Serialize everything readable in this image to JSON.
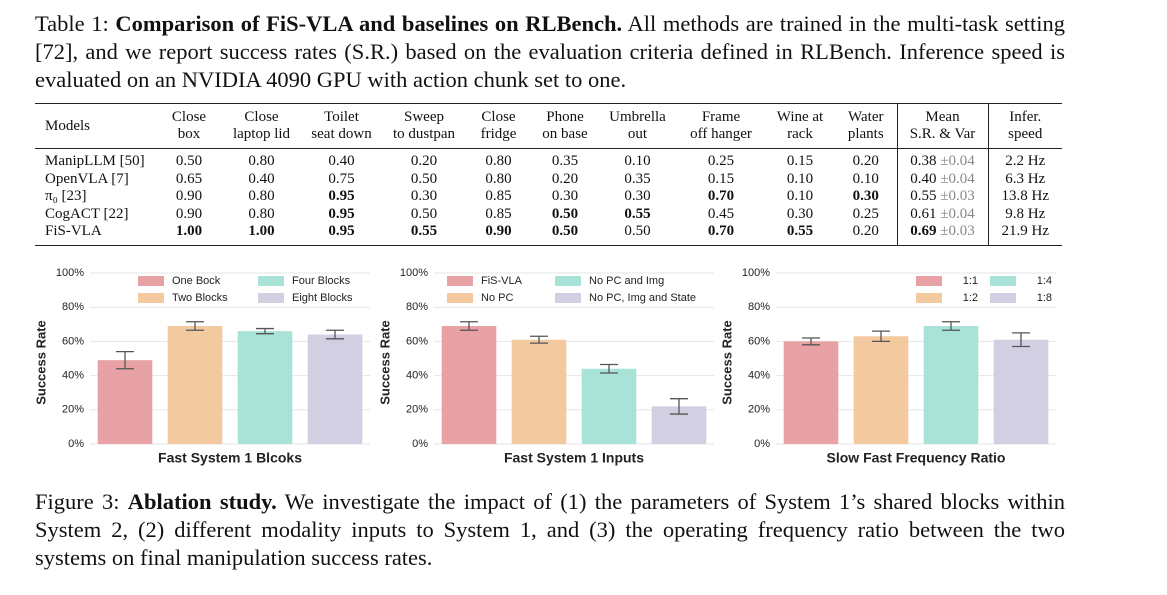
{
  "table_caption": {
    "label": "Table 1:",
    "title": "Comparison of FiS-VLA and baselines on RLBench.",
    "text": "All methods are trained in the multi-task setting [72], and we report success rates (S.R.) based on the evaluation criteria defined in RLBench. Inference speed is evaluated on an NVIDIA 4090 GPU with action chunk set to one."
  },
  "table": {
    "header": [
      [
        "Models"
      ],
      [
        "Close",
        "box"
      ],
      [
        "Close",
        "laptop lid"
      ],
      [
        "Toilet",
        "seat down"
      ],
      [
        "Sweep",
        "to dustpan"
      ],
      [
        "Close",
        "fridge"
      ],
      [
        "Phone",
        "on base"
      ],
      [
        "Umbrella",
        "out"
      ],
      [
        "Frame",
        "off hanger"
      ],
      [
        "Wine at",
        "rack"
      ],
      [
        "Water",
        "plants"
      ],
      [
        "Mean",
        "S.R. & Var"
      ],
      [
        "Infer.",
        "speed"
      ]
    ],
    "rows": [
      {
        "model": "ManipLLM [50]",
        "scores": [
          "0.50",
          "0.80",
          "0.40",
          "0.20",
          "0.80",
          "0.35",
          "0.10",
          "0.25",
          "0.15",
          "0.20"
        ],
        "mean": "0.38",
        "var": "±0.04",
        "speed": "2.2 Hz",
        "bold": []
      },
      {
        "model": "OpenVLA [7]",
        "scores": [
          "0.65",
          "0.40",
          "0.75",
          "0.50",
          "0.80",
          "0.20",
          "0.35",
          "0.15",
          "0.10",
          "0.10"
        ],
        "mean": "0.40",
        "var": "±0.04",
        "speed": "6.3 Hz",
        "bold": []
      },
      {
        "model": "π₀ [23]",
        "scores": [
          "0.90",
          "0.80",
          "0.95",
          "0.30",
          "0.85",
          "0.30",
          "0.30",
          "0.70",
          "0.10",
          "0.30"
        ],
        "mean": "0.55",
        "var": "±0.03",
        "speed": "13.8 Hz",
        "bold": [
          2,
          7,
          9
        ]
      },
      {
        "model": "CogACT [22]",
        "scores": [
          "0.90",
          "0.80",
          "0.95",
          "0.50",
          "0.85",
          "0.50",
          "0.55",
          "0.45",
          "0.30",
          "0.25"
        ],
        "mean": "0.61",
        "var": "±0.04",
        "speed": "9.8 Hz",
        "bold": [
          2,
          5,
          6
        ]
      },
      {
        "model": "FiS-VLA",
        "scores": [
          "1.00",
          "1.00",
          "0.95",
          "0.55",
          "0.90",
          "0.50",
          "0.50",
          "0.70",
          "0.55",
          "0.20"
        ],
        "mean": "0.69",
        "var": "±0.03",
        "speed": "21.9 Hz",
        "bold": [
          0,
          1,
          2,
          3,
          4,
          5,
          7,
          8,
          10
        ]
      }
    ]
  },
  "chart_data": [
    {
      "type": "bar",
      "xlabel": "Fast System 1 Blcoks",
      "ylabel": "Success Rate",
      "categories": [
        "One Bock",
        "Two Blocks",
        "Four Blocks",
        "Eight Blocks"
      ],
      "values": [
        49,
        69,
        66,
        64
      ],
      "errors": [
        5,
        2.5,
        1.5,
        2.5
      ],
      "colors": [
        "#e8a1a4",
        "#f3c9a0",
        "#a9e2d7",
        "#d2cfe3"
      ],
      "ylim": [
        0,
        100
      ],
      "yticks": [
        {
          "value": 0,
          "label": "0%"
        },
        {
          "value": 20,
          "label": "20%"
        },
        {
          "value": 40,
          "label": "40%"
        },
        {
          "value": 60,
          "label": "60%"
        },
        {
          "value": 80,
          "label": "80%"
        },
        {
          "value": 100,
          "label": "100%"
        }
      ],
      "grid": true,
      "legend_loc": "upper center"
    },
    {
      "type": "bar",
      "xlabel": "Fast System 1 Inputs",
      "ylabel": "Success Rate",
      "categories": [
        "FiS-VLA",
        "No PC",
        "No PC and Img",
        "No PC, Img and State"
      ],
      "values": [
        69,
        61,
        44,
        22
      ],
      "errors": [
        2.5,
        2,
        2.5,
        4.5
      ],
      "colors": [
        "#e8a1a4",
        "#f3c9a0",
        "#a9e2d7",
        "#d2cfe3"
      ],
      "ylim": [
        0,
        100
      ],
      "yticks": [
        {
          "value": 0,
          "label": "0%"
        },
        {
          "value": 20,
          "label": "20%"
        },
        {
          "value": 40,
          "label": "40%"
        },
        {
          "value": 60,
          "label": "60%"
        },
        {
          "value": 80,
          "label": "80%"
        },
        {
          "value": 100,
          "label": "100%"
        }
      ],
      "grid": true,
      "legend_loc": "upper left"
    },
    {
      "type": "bar",
      "xlabel": "Slow Fast Frequency Ratio",
      "ylabel": "Success Rate",
      "categories": [
        "1:1",
        "1:2",
        "1:4",
        "1:8"
      ],
      "values": [
        60,
        63,
        69,
        61
      ],
      "errors": [
        2,
        3,
        2.5,
        4
      ],
      "colors": [
        "#e8a1a4",
        "#f3c9a0",
        "#a9e2d7",
        "#d2cfe3"
      ],
      "ylim": [
        0,
        100
      ],
      "yticks": [
        {
          "value": 0,
          "label": "0%"
        },
        {
          "value": 20,
          "label": "20%"
        },
        {
          "value": 40,
          "label": "40%"
        },
        {
          "value": 60,
          "label": "60%"
        },
        {
          "value": 80,
          "label": "80%"
        },
        {
          "value": 100,
          "label": "100%"
        }
      ],
      "grid": true,
      "legend_loc": "upper right"
    }
  ],
  "figure_caption": {
    "label": "Figure 3:",
    "title": "Ablation study.",
    "text": "We investigate the impact of (1) the parameters of System 1’s shared blocks within System 2, (2) different modality inputs to System 1, and (3) the operating frequency ratio between the two systems on final manipulation success rates."
  }
}
